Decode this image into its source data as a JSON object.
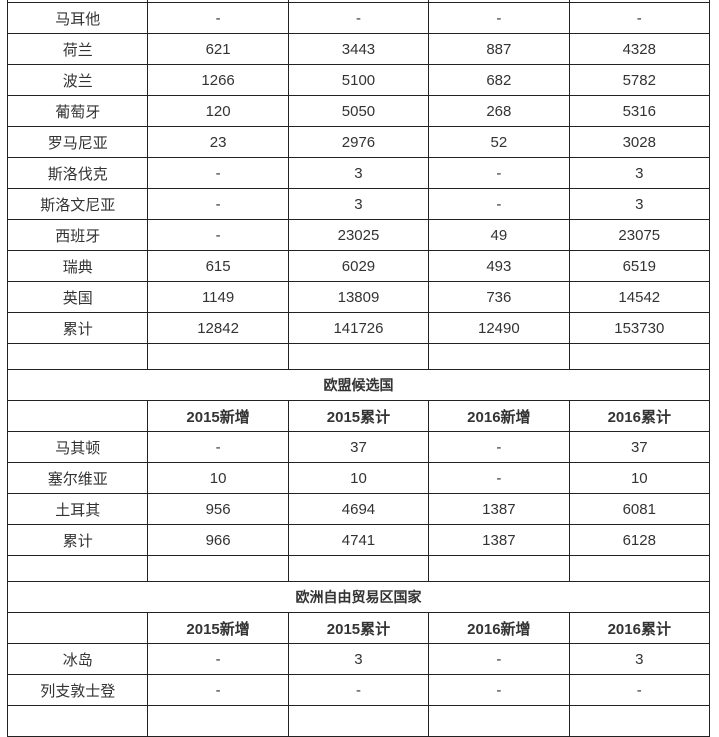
{
  "columns": [
    "2015新增",
    "2015累计",
    "2016新增",
    "2016累计"
  ],
  "eu_rows": [
    {
      "country": "马耳他",
      "v": [
        "-",
        "-",
        "-",
        "-"
      ]
    },
    {
      "country": "荷兰",
      "v": [
        "621",
        "3443",
        "887",
        "4328"
      ]
    },
    {
      "country": "波兰",
      "v": [
        "1266",
        "5100",
        "682",
        "5782"
      ]
    },
    {
      "country": "葡萄牙",
      "v": [
        "120",
        "5050",
        "268",
        "5316"
      ]
    },
    {
      "country": "罗马尼亚",
      "v": [
        "23",
        "2976",
        "52",
        "3028"
      ]
    },
    {
      "country": "斯洛伐克",
      "v": [
        "-",
        "3",
        "-",
        "3"
      ]
    },
    {
      "country": "斯洛文尼亚",
      "v": [
        "-",
        "3",
        "-",
        "3"
      ]
    },
    {
      "country": "西班牙",
      "v": [
        "-",
        "23025",
        "49",
        "23075"
      ]
    },
    {
      "country": "瑞典",
      "v": [
        "615",
        "6029",
        "493",
        "6519"
      ]
    },
    {
      "country": "英国",
      "v": [
        "1149",
        "13809",
        "736",
        "14542"
      ]
    },
    {
      "country": "累计",
      "v": [
        "12842",
        "141726",
        "12490",
        "153730"
      ]
    }
  ],
  "candidates": {
    "title": "欧盟候选国",
    "rows": [
      {
        "country": "马其顿",
        "v": [
          "-",
          "37",
          "-",
          "37"
        ]
      },
      {
        "country": "塞尔维亚",
        "v": [
          "10",
          "10",
          "-",
          "10"
        ]
      },
      {
        "country": "土耳其",
        "v": [
          "956",
          "4694",
          "1387",
          "6081"
        ]
      },
      {
        "country": "累计",
        "v": [
          "966",
          "4741",
          "1387",
          "6128"
        ]
      }
    ]
  },
  "efta": {
    "title": "欧洲自由贸易区国家",
    "rows": [
      {
        "country": "冰岛",
        "v": [
          "-",
          "3",
          "-",
          "3"
        ]
      },
      {
        "country": "列支敦士登",
        "v": [
          "-",
          "-",
          "-",
          "-"
        ]
      }
    ]
  }
}
